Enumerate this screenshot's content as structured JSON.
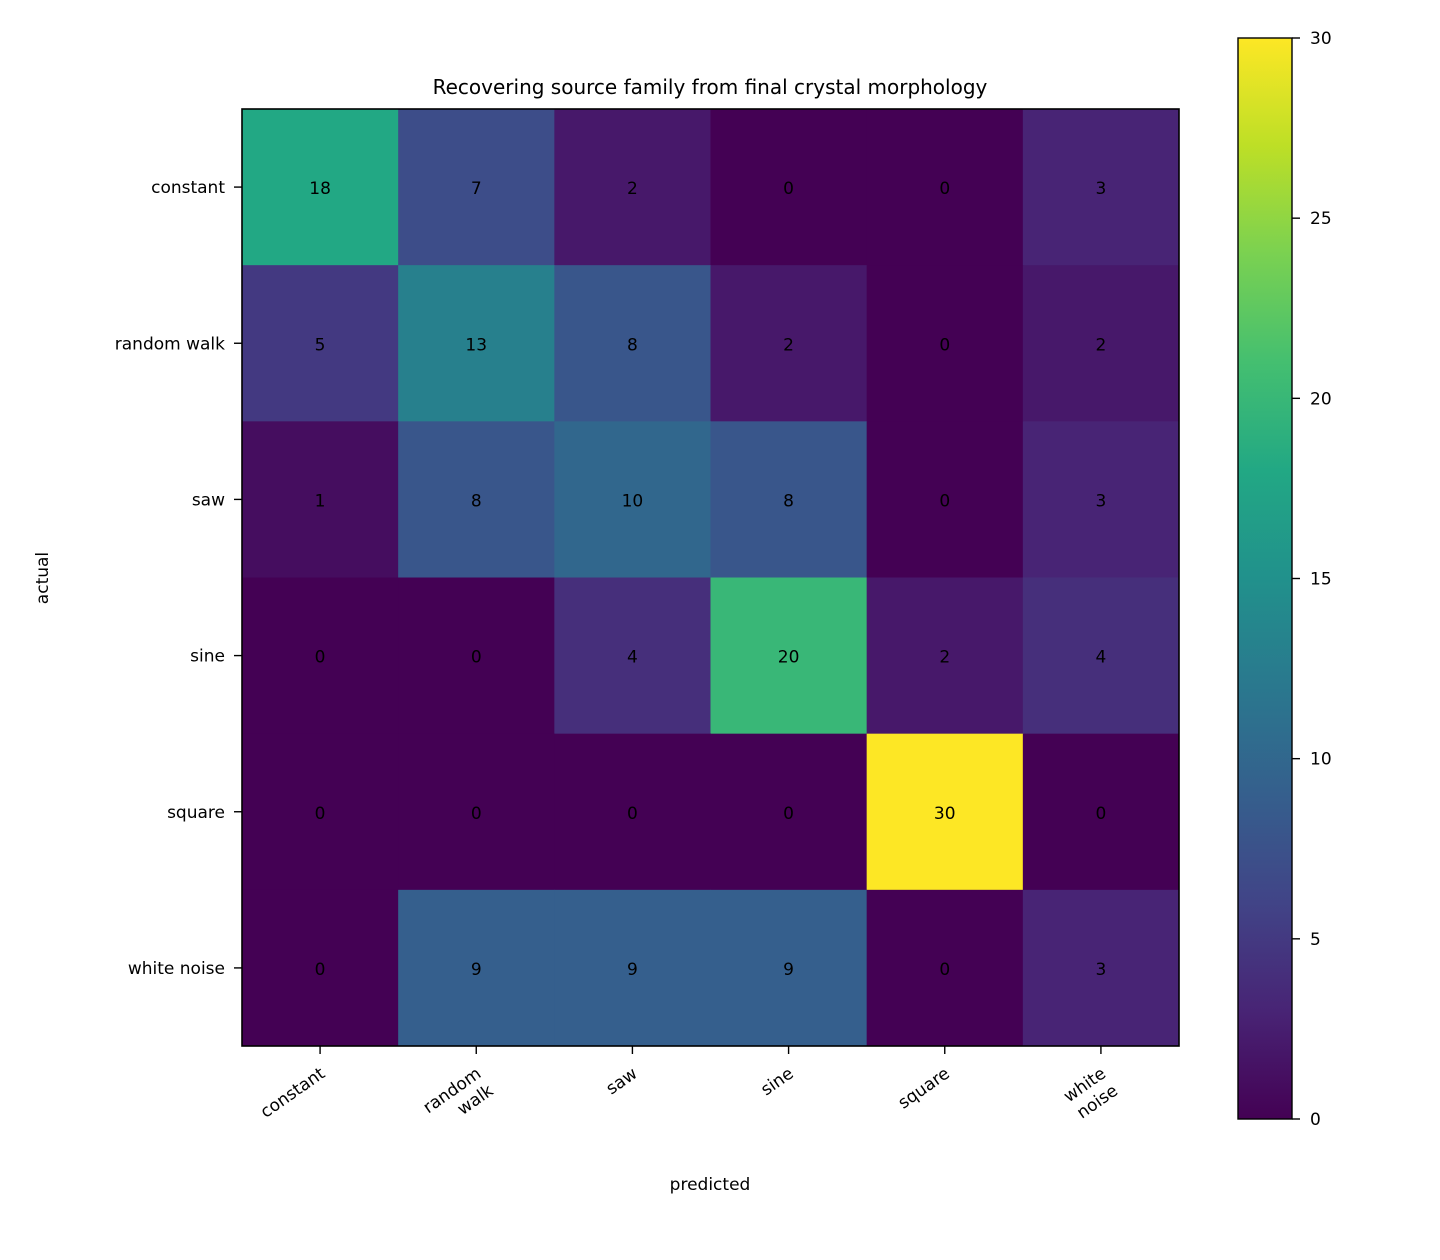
{
  "chart_data": {
    "type": "heatmap",
    "title": "Recovering source family from final crystal morphology",
    "xlabel": "predicted",
    "ylabel": "actual",
    "x_categories": [
      [
        "constant"
      ],
      [
        "random",
        "walk"
      ],
      [
        "saw"
      ],
      [
        "sine"
      ],
      [
        "square"
      ],
      [
        "white",
        "noise"
      ]
    ],
    "y_categories": [
      "constant",
      "random walk",
      "saw",
      "sine",
      "square",
      "white noise"
    ],
    "values": [
      [
        18,
        7,
        2,
        0,
        0,
        3
      ],
      [
        5,
        13,
        8,
        2,
        0,
        2
      ],
      [
        1,
        8,
        10,
        8,
        0,
        3
      ],
      [
        0,
        0,
        4,
        20,
        2,
        4
      ],
      [
        0,
        0,
        0,
        0,
        30,
        0
      ],
      [
        0,
        9,
        9,
        9,
        0,
        3
      ]
    ],
    "colormap": "viridis",
    "vmin": 0,
    "vmax": 30,
    "colorbar_ticks": [
      0,
      5,
      10,
      15,
      20,
      25,
      30
    ],
    "grid": false
  }
}
